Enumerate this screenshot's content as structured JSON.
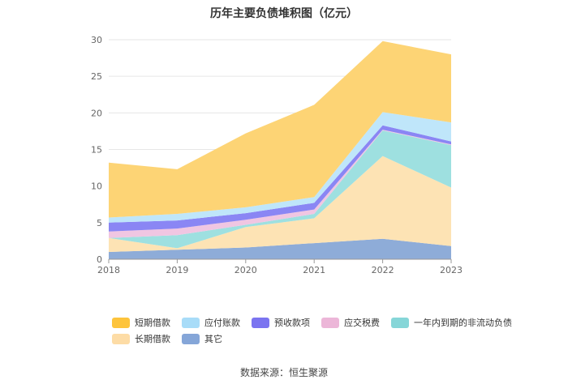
{
  "source": "数据来源：恒生聚源",
  "chart_data": {
    "type": "area",
    "stacked": true,
    "title": "历年主要负债堆积图（亿元）",
    "xlabel": "",
    "ylabel": "",
    "x": [
      "2018",
      "2019",
      "2020",
      "2021",
      "2022",
      "2023"
    ],
    "ylim": [
      0,
      30
    ],
    "yticks": [
      0,
      5,
      10,
      15,
      20,
      25,
      30
    ],
    "grid": true,
    "legend_position": "bottom",
    "series": [
      {
        "name": "其它",
        "color": "#8eacd8",
        "values": [
          1.0,
          1.3,
          1.6,
          2.2,
          2.8,
          1.8
        ]
      },
      {
        "name": "长期借款",
        "color": "#fde3b4",
        "values": [
          1.9,
          0.2,
          2.8,
          3.4,
          11.3,
          8.0
        ]
      },
      {
        "name": "一年内到期的非流动负债",
        "color": "#9ee0e0",
        "values": [
          0.0,
          1.8,
          0.3,
          0.6,
          3.5,
          5.8
        ]
      },
      {
        "name": "应交税费",
        "color": "#f0c6e2",
        "values": [
          0.9,
          0.9,
          0.7,
          0.6,
          0.1,
          0.1
        ]
      },
      {
        "name": "预收款项",
        "color": "#8a86f4",
        "values": [
          1.2,
          1.1,
          0.9,
          0.9,
          0.6,
          0.4
        ]
      },
      {
        "name": "应付账款",
        "color": "#bfe6fa",
        "values": [
          0.7,
          0.9,
          0.8,
          0.8,
          1.8,
          2.6
        ]
      },
      {
        "name": "短期借款",
        "color": "#fdd475",
        "values": [
          7.5,
          6.1,
          10.1,
          12.6,
          9.7,
          9.3
        ]
      }
    ],
    "legend_order": [
      "短期借款",
      "应付账款",
      "预收款项",
      "应交税费",
      "一年内到期的非流动负债",
      "长期借款",
      "其它"
    ],
    "legend_swatch_colors": {
      "短期借款": "#fdc43c",
      "应付账款": "#a8dcf8",
      "预收款项": "#7b74f0",
      "应交税费": "#ecb6d8",
      "一年内到期的非流动负债": "#86d6d8",
      "长期借款": "#fddca6",
      "其它": "#85a6d8"
    }
  }
}
